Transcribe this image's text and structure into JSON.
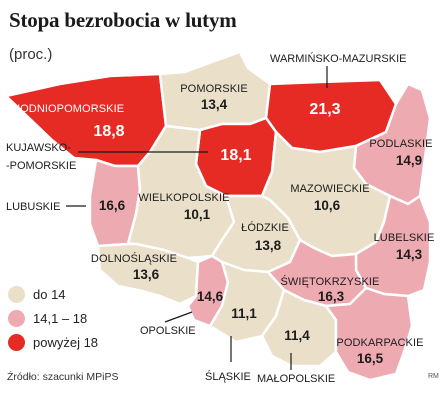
{
  "title": "Stopa bezrobocia w lutym",
  "subtitle": "(proc.)",
  "colors": {
    "low": "#eadfc9",
    "mid": "#eeaab1",
    "high": "#e62b25"
  },
  "regions": {
    "zachodniopomorskie": {
      "name": "ZACHODNIOPOMORSKIE",
      "value": "18,8",
      "class": "high"
    },
    "pomorskie": {
      "name": "POMORSKIE",
      "value": "13,4",
      "class": "low"
    },
    "warminsko": {
      "name": "WARMIŃSKO-MAZURSKIE",
      "value": "21,3",
      "class": "high"
    },
    "kujawsko": {
      "name_line1": "KUJAWSKO-",
      "name_line2": "-POMORSKIE",
      "value": "18,1",
      "class": "high"
    },
    "podlaskie": {
      "name": "PODLASKIE",
      "value": "14,9",
      "class": "mid"
    },
    "lubuskie": {
      "name": "LUBUSKIE",
      "value": "16,6",
      "class": "mid"
    },
    "wielkopolskie": {
      "name": "WIELKOPOLSKIE",
      "value": "10,1",
      "class": "low"
    },
    "mazowieckie": {
      "name": "MAZOWIECKIE",
      "value": "10,6",
      "class": "low"
    },
    "lodzkie": {
      "name": "ŁÓDZKIE",
      "value": "13,8",
      "class": "low"
    },
    "lubelskie": {
      "name": "LUBELSKIE",
      "value": "14,3",
      "class": "mid"
    },
    "dolnoslaskie": {
      "name": "DOLNOŚLĄSKIE",
      "value": "13,6",
      "class": "low"
    },
    "opolskie": {
      "name": "OPOLSKIE",
      "value": "14,6",
      "class": "mid"
    },
    "swietokrzyskie": {
      "name": "ŚWIĘTOKRZYSKIE",
      "value": "16,3",
      "class": "mid"
    },
    "slaskie": {
      "name": "ŚLĄSKIE",
      "value": "11,1",
      "class": "low"
    },
    "malopolskie": {
      "name": "MAŁOPOLSKIE",
      "value": "11,4",
      "class": "low"
    },
    "podkarpackie": {
      "name": "PODKARPACKIE",
      "value": "16,5",
      "class": "mid"
    }
  },
  "legend": [
    {
      "label": "do 14",
      "class": "low"
    },
    {
      "label": "14,1 – 18",
      "class": "mid"
    },
    {
      "label": "powyżej 18",
      "class": "high"
    }
  ],
  "source": "Źródło: szacunki MPiPS",
  "credit": "RM"
}
